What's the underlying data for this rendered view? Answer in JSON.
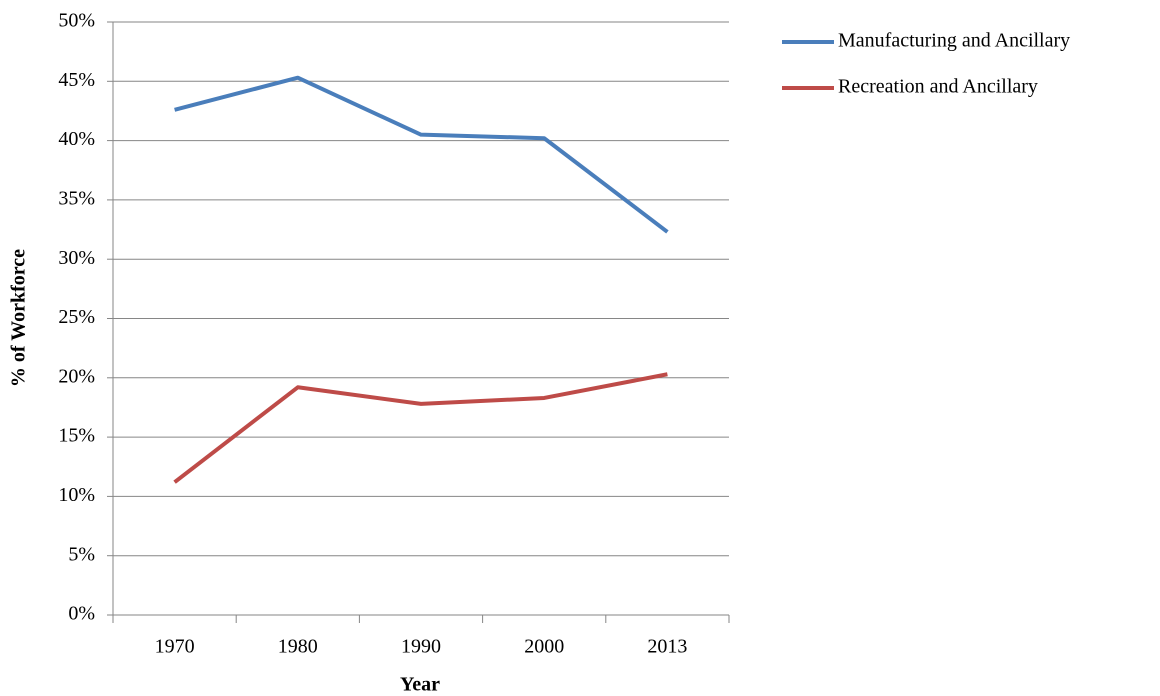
{
  "chart_data": {
    "type": "line",
    "xlabel": "Year",
    "ylabel": "% of Workforce",
    "categories": [
      "1970",
      "1980",
      "1990",
      "2000",
      "2013"
    ],
    "series": [
      {
        "name": "Manufacturing and Ancillary",
        "color": "#4a7ebb",
        "values": [
          42.6,
          45.3,
          40.5,
          40.2,
          32.3
        ]
      },
      {
        "name": "Recreation and Ancillary",
        "color": "#be4b48",
        "values": [
          11.2,
          19.2,
          17.8,
          18.3,
          20.3
        ]
      }
    ],
    "ylim": [
      0,
      50
    ],
    "yticks": [
      {
        "value": 0,
        "label": "0%"
      },
      {
        "value": 5,
        "label": "5%"
      },
      {
        "value": 10,
        "label": "10%"
      },
      {
        "value": 15,
        "label": "15%"
      },
      {
        "value": 20,
        "label": "20%"
      },
      {
        "value": 25,
        "label": "25%"
      },
      {
        "value": 30,
        "label": "30%"
      },
      {
        "value": 35,
        "label": "35%"
      },
      {
        "value": 40,
        "label": "40%"
      },
      {
        "value": 45,
        "label": "45%"
      },
      {
        "value": 50,
        "label": "50%"
      }
    ],
    "grid": true,
    "legend": "right"
  }
}
